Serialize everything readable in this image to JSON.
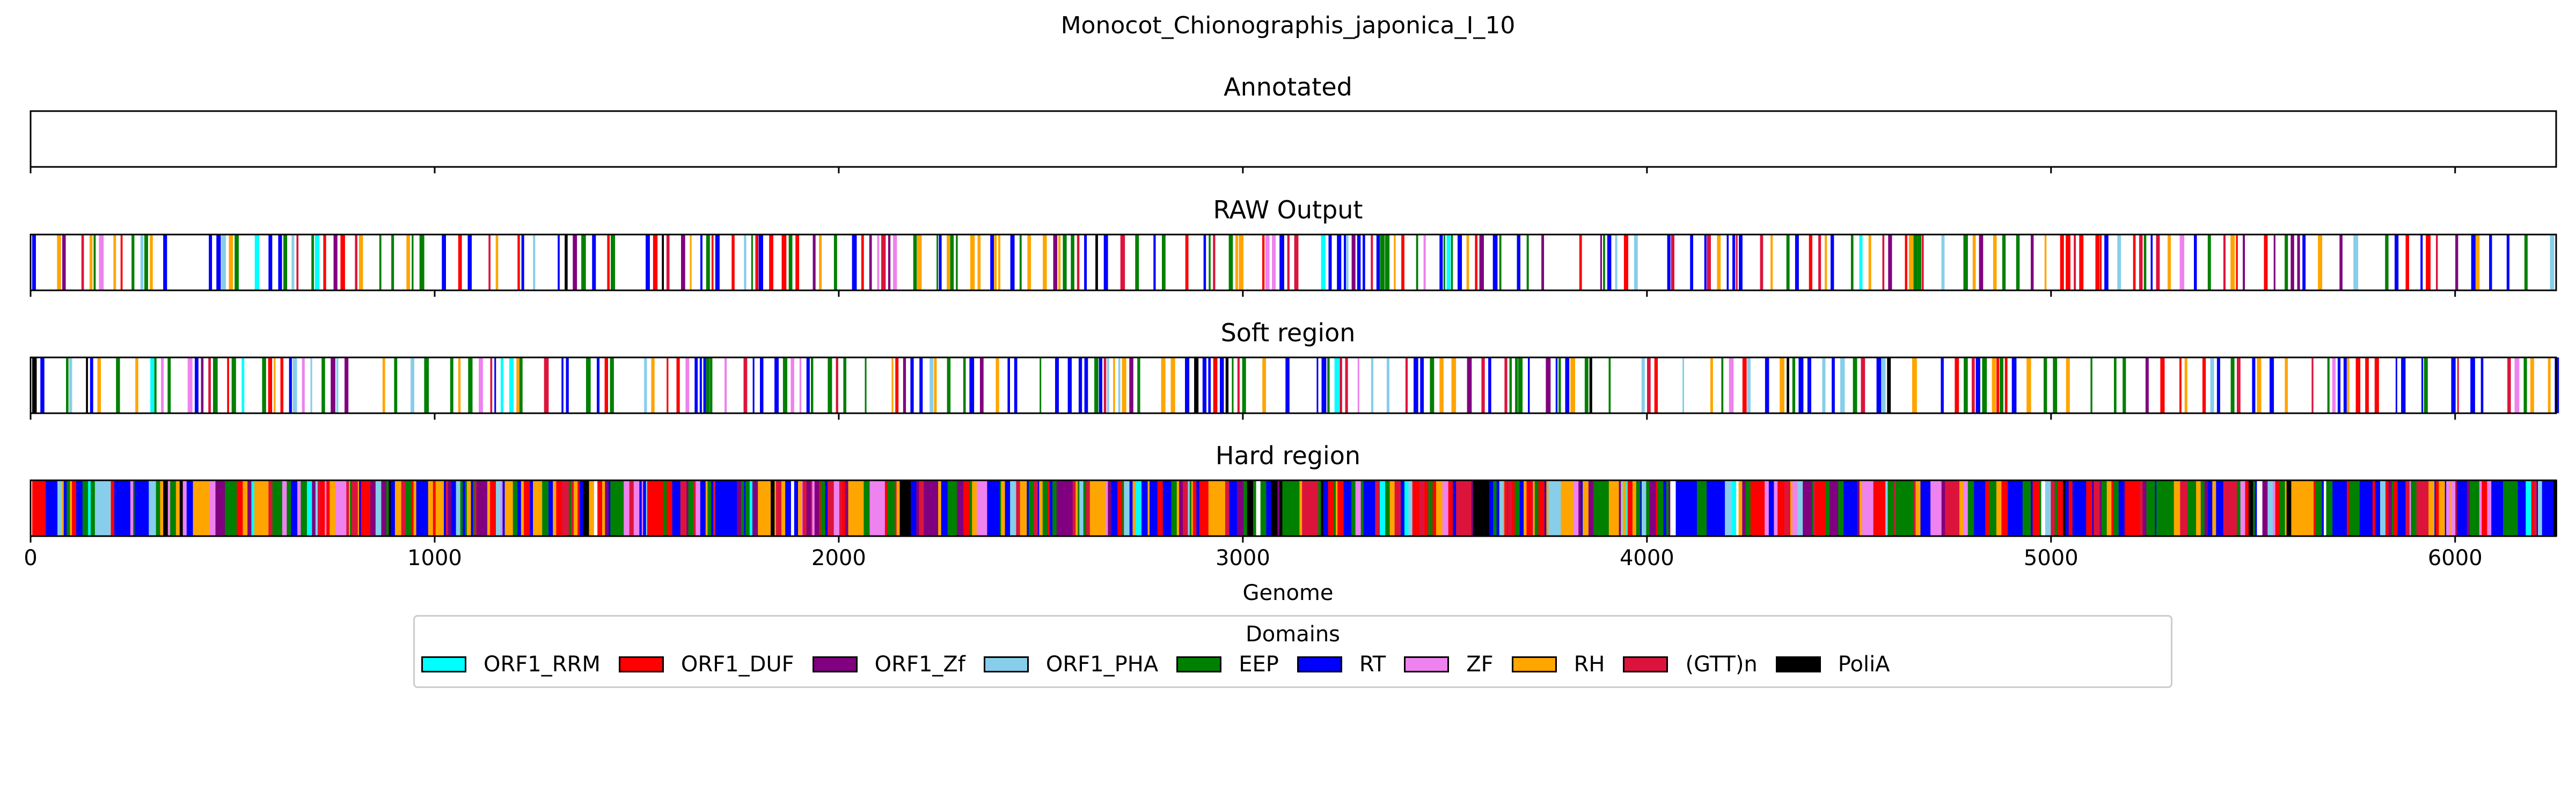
{
  "chart_data": {
    "type": "genome-track",
    "title": "Monocot_Chionographis_japonica_I_10",
    "xlabel": "Genome",
    "xlim": [
      0,
      6250
    ],
    "xticks": [
      0,
      1000,
      2000,
      3000,
      4000,
      5000,
      6000
    ],
    "panels": [
      {
        "title": "Annotated",
        "segments": []
      },
      {
        "title": "RAW Output",
        "style": "sparse"
      },
      {
        "title": "Soft region",
        "style": "sparse"
      },
      {
        "title": "Hard region",
        "style": "dense"
      }
    ],
    "legend": {
      "title": "Domains",
      "placement": "bottom-center",
      "entries": [
        {
          "label": "ORF1_RRM",
          "color": "#00ffff"
        },
        {
          "label": "ORF1_DUF",
          "color": "#ff0000"
        },
        {
          "label": "ORF1_Zf",
          "color": "#800080"
        },
        {
          "label": "ORF1_PHA",
          "color": "#87ceeb"
        },
        {
          "label": "EEP",
          "color": "#008000"
        },
        {
          "label": "RT",
          "color": "#0000ff"
        },
        {
          "label": "ZF",
          "color": "#ee82ee"
        },
        {
          "label": "RH",
          "color": "#ffa500"
        },
        {
          "label": "(GTT)n",
          "color": "#dc143c"
        },
        {
          "label": "PoliA",
          "color": "#000000"
        }
      ]
    }
  }
}
